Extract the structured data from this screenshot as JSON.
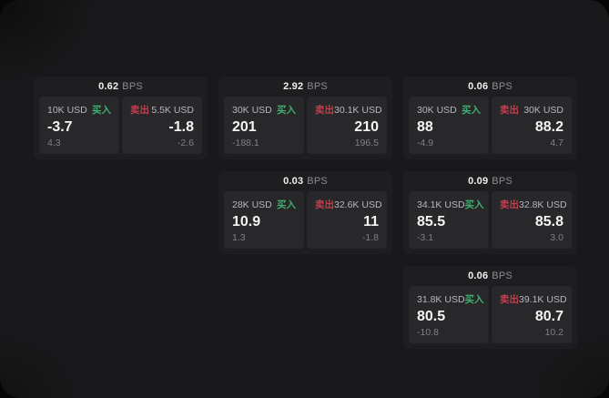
{
  "colors": {
    "buy": "#3fae6e",
    "sell": "#bf3f4e",
    "canvas": "#19191b",
    "card": "#1e1e20",
    "panel": "#28282a"
  },
  "labels": {
    "buy_side": "买入",
    "sell_side": "卖出",
    "unit": "BPS"
  },
  "cards": [
    {
      "position": "row1-col1",
      "spread": "0.62",
      "unit": "BPS",
      "buy": {
        "amount": "10K USD",
        "side": "买入",
        "price": "-3.7",
        "change": "4.3"
      },
      "sell": {
        "side": "卖出",
        "amount": "5.5K USD",
        "price": "-1.8",
        "change": "-2.6"
      }
    },
    {
      "position": "row1-col2",
      "spread": "2.92",
      "unit": "BPS",
      "buy": {
        "amount": "30K USD",
        "side": "买入",
        "price": "201",
        "change": "-188.1"
      },
      "sell": {
        "side": "卖出",
        "amount": "30.1K USD",
        "price": "210",
        "change": "196.5"
      }
    },
    {
      "position": "row1-col3",
      "spread": "0.06",
      "unit": "BPS",
      "buy": {
        "amount": "30K USD",
        "side": "买入",
        "price": "88",
        "change": "-4.9"
      },
      "sell": {
        "side": "卖出",
        "amount": "30K USD",
        "price": "88.2",
        "change": "4.7"
      }
    },
    {
      "position": "row2-col2",
      "spread": "0.03",
      "unit": "BPS",
      "buy": {
        "amount": "28K USD",
        "side": "买入",
        "price": "10.9",
        "change": "1.3"
      },
      "sell": {
        "side": "卖出",
        "amount": "32.6K USD",
        "price": "11",
        "change": "-1.8"
      }
    },
    {
      "position": "row2-col3",
      "spread": "0.09",
      "unit": "BPS",
      "buy": {
        "amount": "34.1K USD",
        "side": "买入",
        "price": "85.5",
        "change": "-3.1"
      },
      "sell": {
        "side": "卖出",
        "amount": "32.8K USD",
        "price": "85.8",
        "change": "3.0"
      }
    },
    {
      "position": "row3-col3",
      "spread": "0.06",
      "unit": "BPS",
      "buy": {
        "amount": "31.8K USD",
        "side": "买入",
        "price": "80.5",
        "change": "-10.8"
      },
      "sell": {
        "side": "卖出",
        "amount": "39.1K USD",
        "price": "80.7",
        "change": "10.2"
      }
    }
  ]
}
